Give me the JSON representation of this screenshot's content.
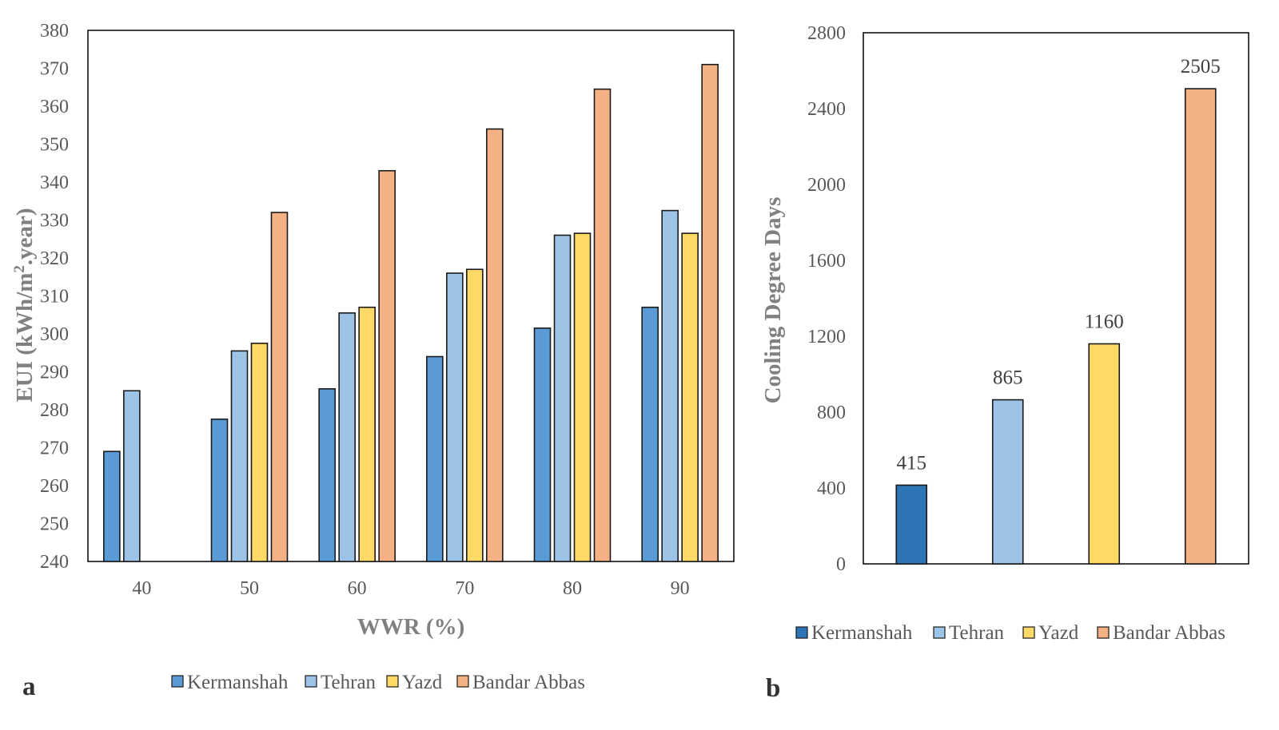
{
  "colors": {
    "Kermanshah_a": "#5b9bd5",
    "Kermanshah_b": "#2e75b6",
    "Tehran": "#9dc3e6",
    "Yazd": "#ffd966",
    "Bandar Abbas": "#f4b183"
  },
  "chart_data": [
    {
      "panel": "a",
      "type": "bar",
      "xlabel": "WWR (%)",
      "ylabel_parts": [
        "EUI (kWh/m",
        "2",
        ".year)"
      ],
      "categories": [
        "40",
        "50",
        "60",
        "70",
        "80",
        "90"
      ],
      "ylim": [
        240,
        380
      ],
      "yticks": [
        240,
        250,
        260,
        270,
        280,
        290,
        300,
        310,
        320,
        330,
        340,
        350,
        360,
        370,
        380
      ],
      "series": [
        {
          "name": "Kermanshah",
          "color_key": "Kermanshah_a",
          "values": [
            269,
            277.5,
            285.5,
            294,
            301.5,
            307
          ]
        },
        {
          "name": "Tehran",
          "color_key": "Tehran",
          "values": [
            285,
            295.5,
            305.5,
            316,
            326,
            332.5
          ]
        },
        {
          "name": "Yazd",
          "color_key": "Yazd",
          "values": [
            null,
            297.5,
            307,
            317,
            326.5,
            326.5
          ]
        },
        {
          "name": "Bandar Abbas",
          "color_key": "Bandar Abbas",
          "values": [
            null,
            332,
            343,
            354,
            364.5,
            371
          ]
        }
      ],
      "grid": false,
      "legend_position": "bottom"
    },
    {
      "panel": "b",
      "type": "bar",
      "ylabel": "Cooling Degree Days",
      "categories": [
        "Kermanshah",
        "Tehran",
        "Yazd",
        "Bandar Abbas"
      ],
      "values": [
        415,
        865,
        1160,
        2505
      ],
      "data_labels": [
        "415",
        "865",
        "1160",
        "2505"
      ],
      "color_keys": [
        "Kermanshah_b",
        "Tehran",
        "Yazd",
        "Bandar Abbas"
      ],
      "ylim": [
        0,
        2800
      ],
      "yticks": [
        0,
        400,
        800,
        1200,
        1600,
        2000,
        2400,
        2800
      ],
      "grid": false,
      "legend_position": "bottom"
    }
  ],
  "legend_a": [
    {
      "label": "Kermanshah",
      "color_key": "Kermanshah_a"
    },
    {
      "label": "Tehran",
      "color_key": "Tehran"
    },
    {
      "label": "Yazd",
      "color_key": "Yazd"
    },
    {
      "label": "Bandar Abbas",
      "color_key": "Bandar Abbas"
    }
  ],
  "legend_b": [
    {
      "label": "Kermanshah",
      "color_key": "Kermanshah_b"
    },
    {
      "label": "Tehran",
      "color_key": "Tehran"
    },
    {
      "label": "Yazd",
      "color_key": "Yazd"
    },
    {
      "label": "Bandar Abbas",
      "color_key": "Bandar Abbas"
    }
  ],
  "panel_labels": {
    "a": "a",
    "b": "b"
  }
}
